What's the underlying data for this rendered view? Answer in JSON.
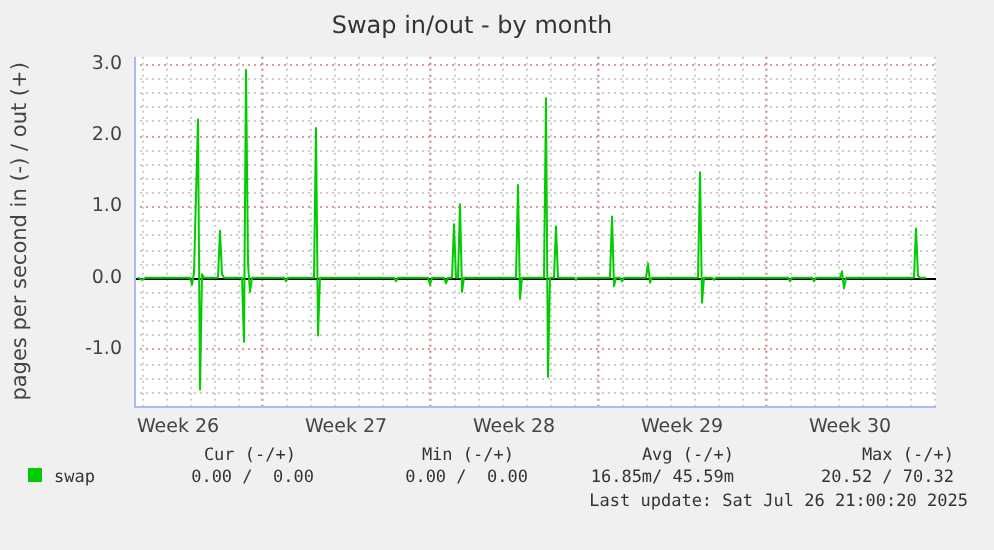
{
  "chart_data": {
    "type": "line",
    "title": "Swap in/out - by month",
    "ylabel": "pages per second in (-) / out (+)",
    "xlim": [
      "2025-06-24T16:00",
      "2025-07-28T02:00"
    ],
    "xticks": [
      {
        "value": "2025-06-26T12:00",
        "label": "Week 26"
      },
      {
        "value": "2025-06-30T00:00",
        "label": null
      },
      {
        "value": "2025-07-03T12:00",
        "label": "Week 27"
      },
      {
        "value": "2025-07-07T00:00",
        "label": null
      },
      {
        "value": "2025-07-10T12:00",
        "label": "Week 28"
      },
      {
        "value": "2025-07-14T00:00",
        "label": null
      },
      {
        "value": "2025-07-17T12:00",
        "label": "Week 29"
      },
      {
        "value": "2025-07-21T00:00",
        "label": null
      },
      {
        "value": "2025-07-24T12:00",
        "label": "Week 30"
      }
    ],
    "ylim": [
      -1.8,
      3.1
    ],
    "yticks": [
      {
        "value": -1,
        "label": "-1.0"
      },
      {
        "value": 0,
        "label": "0.0"
      },
      {
        "value": 1,
        "label": "1.0"
      },
      {
        "value": 2,
        "label": "2.0"
      },
      {
        "value": 3,
        "label": "3.0"
      }
    ],
    "grid": true,
    "legend": "bottom left",
    "marker": "none",
    "line_style": "solid",
    "ref_lines": [
      {
        "axis": "y",
        "value": 0,
        "label": null,
        "color": "#000000"
      }
    ],
    "x": [
      "2025-06-24T20:00",
      "2025-06-25T00:00",
      "2025-06-25T04:00",
      "2025-06-27T00:00",
      "2025-06-27T02:00",
      "2025-06-27T04:00",
      "2025-06-27T08:00",
      "2025-06-27T10:00",
      "2025-06-27T12:00",
      "2025-06-27T14:00",
      "2025-06-28T04:00",
      "2025-06-28T06:00",
      "2025-06-28T08:00",
      "2025-06-28T10:00",
      "2025-06-29T04:00",
      "2025-06-29T06:00",
      "2025-06-29T08:00",
      "2025-06-29T10:00",
      "2025-06-29T12:00",
      "2025-06-29T14:00",
      "2025-06-30T22:00",
      "2025-07-01T00:00",
      "2025-07-01T02:00",
      "2025-07-02T04:00",
      "2025-07-02T06:00",
      "2025-07-02T08:00",
      "2025-07-02T10:00",
      "2025-07-05T12:00",
      "2025-07-05T14:00",
      "2025-07-05T16:00",
      "2025-07-06T22:00",
      "2025-07-07T00:00",
      "2025-07-07T02:00",
      "2025-07-07T14:00",
      "2025-07-07T16:00",
      "2025-07-07T18:00",
      "2025-07-07T22:00",
      "2025-07-08T00:00",
      "2025-07-08T02:00",
      "2025-07-08T04:00",
      "2025-07-08T06:00",
      "2025-07-08T08:00",
      "2025-07-08T10:00",
      "2025-07-10T14:00",
      "2025-07-10T16:00",
      "2025-07-10T18:00",
      "2025-07-10T20:00",
      "2025-07-11T18:00",
      "2025-07-11T20:00",
      "2025-07-11T22:00",
      "2025-07-12T00:00",
      "2025-07-12T04:00",
      "2025-07-12T06:00",
      "2025-07-12T08:00",
      "2025-07-13T00:00",
      "2025-07-13T02:00",
      "2025-07-13T04:00",
      "2025-07-14T12:00",
      "2025-07-14T14:00",
      "2025-07-14T16:00",
      "2025-07-14T18:00",
      "2025-07-14T22:00",
      "2025-07-15T00:00",
      "2025-07-15T02:00",
      "2025-07-16T00:00",
      "2025-07-16T02:00",
      "2025-07-16T04:00",
      "2025-07-16T06:00",
      "2025-07-18T04:00",
      "2025-07-18T06:00",
      "2025-07-18T08:00",
      "2025-07-18T10:00",
      "2025-07-18T18:00",
      "2025-07-18T20:00",
      "2025-07-18T22:00",
      "2025-07-21T22:00",
      "2025-07-22T00:00",
      "2025-07-22T02:00",
      "2025-07-22T22:00",
      "2025-07-23T00:00",
      "2025-07-23T02:00",
      "2025-07-24T02:00",
      "2025-07-24T04:00",
      "2025-07-24T06:00",
      "2025-07-24T08:00",
      "2025-07-27T04:00",
      "2025-07-27T06:00",
      "2025-07-27T08:00",
      "2025-07-27T10:00",
      "2025-07-27T16:00"
    ],
    "series": [
      {
        "name": "swap",
        "color": "#00cc00",
        "values": [
          0,
          -0.03,
          0,
          0,
          -0.1,
          0.07,
          2.22,
          -1.57,
          0.05,
          0,
          0,
          0.66,
          0.05,
          0,
          0,
          -0.9,
          2.92,
          0.2,
          -0.2,
          0,
          0,
          -0.05,
          0,
          0,
          2.1,
          -0.81,
          0,
          0,
          -0.05,
          0,
          0,
          -0.1,
          0,
          0,
          -0.08,
          0,
          0,
          0.75,
          0,
          0,
          1.03,
          -0.2,
          0,
          0,
          1.3,
          -0.3,
          0,
          0,
          2.52,
          -1.39,
          0,
          0,
          0.72,
          0,
          0,
          -0.03,
          0,
          0,
          0.86,
          -0.12,
          0,
          0,
          -0.05,
          0,
          0,
          0.2,
          -0.07,
          0,
          0,
          1.48,
          -0.35,
          0,
          0,
          -0.03,
          0,
          0,
          -0.05,
          0,
          0,
          -0.05,
          0,
          0,
          0.09,
          -0.15,
          0,
          0,
          0.69,
          0.03,
          0,
          0
        ]
      }
    ],
    "annotations": [
      "Cur (-/+)",
      "Min (-/+)",
      "Avg (-/+)",
      "Max (-/+)",
      "0.00 /  0.00",
      "0.00 /  0.00",
      "16.85m/ 45.59m",
      "20.52 / 70.32",
      "Last update: Sat Jul 26 21:00:20 2025"
    ]
  }
}
